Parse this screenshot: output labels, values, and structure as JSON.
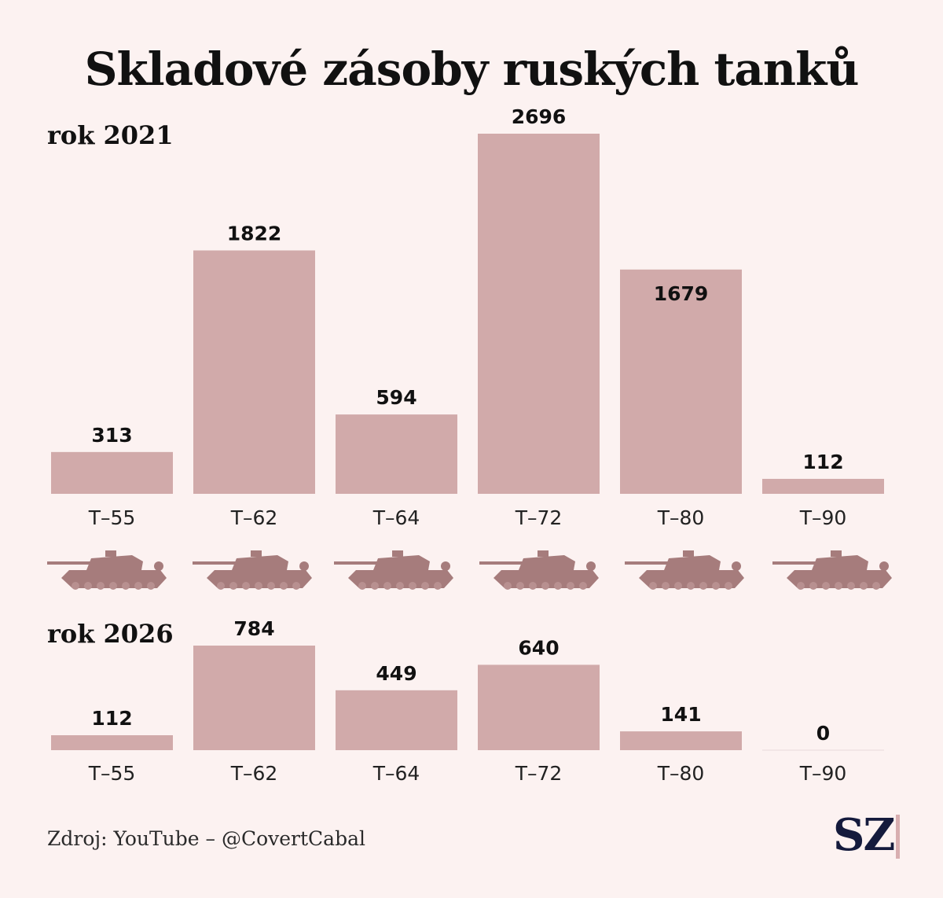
{
  "colors": {
    "bar": "#d1aaaa",
    "tank": "#a67c7c",
    "background": "#fcf2f1",
    "logo": "#141a3c",
    "logo_bar": "#d8aeb0"
  },
  "chart_data": [
    {
      "type": "bar",
      "title": "Skladové zásoby ruských tanků",
      "subtitle": "rok 2021",
      "categories": [
        "T–55",
        "T–62",
        "T–64",
        "T–72",
        "T–80",
        "T–90"
      ],
      "values": [
        313,
        1822,
        594,
        2696,
        1679,
        112
      ],
      "ylim": [
        0,
        2696
      ]
    },
    {
      "type": "bar",
      "subtitle": "rok 2026",
      "categories": [
        "T–55",
        "T–62",
        "T–64",
        "T–72",
        "T–80",
        "T–90"
      ],
      "values": [
        112,
        784,
        449,
        640,
        141,
        0
      ],
      "ylim": [
        0,
        784
      ]
    }
  ],
  "icons": [
    "tank-icon",
    "tank-icon",
    "tank-icon",
    "tank-icon",
    "tank-icon",
    "tank-icon"
  ],
  "source": "Zdroj: YouTube – @CovertCabal",
  "logo": "SZ"
}
